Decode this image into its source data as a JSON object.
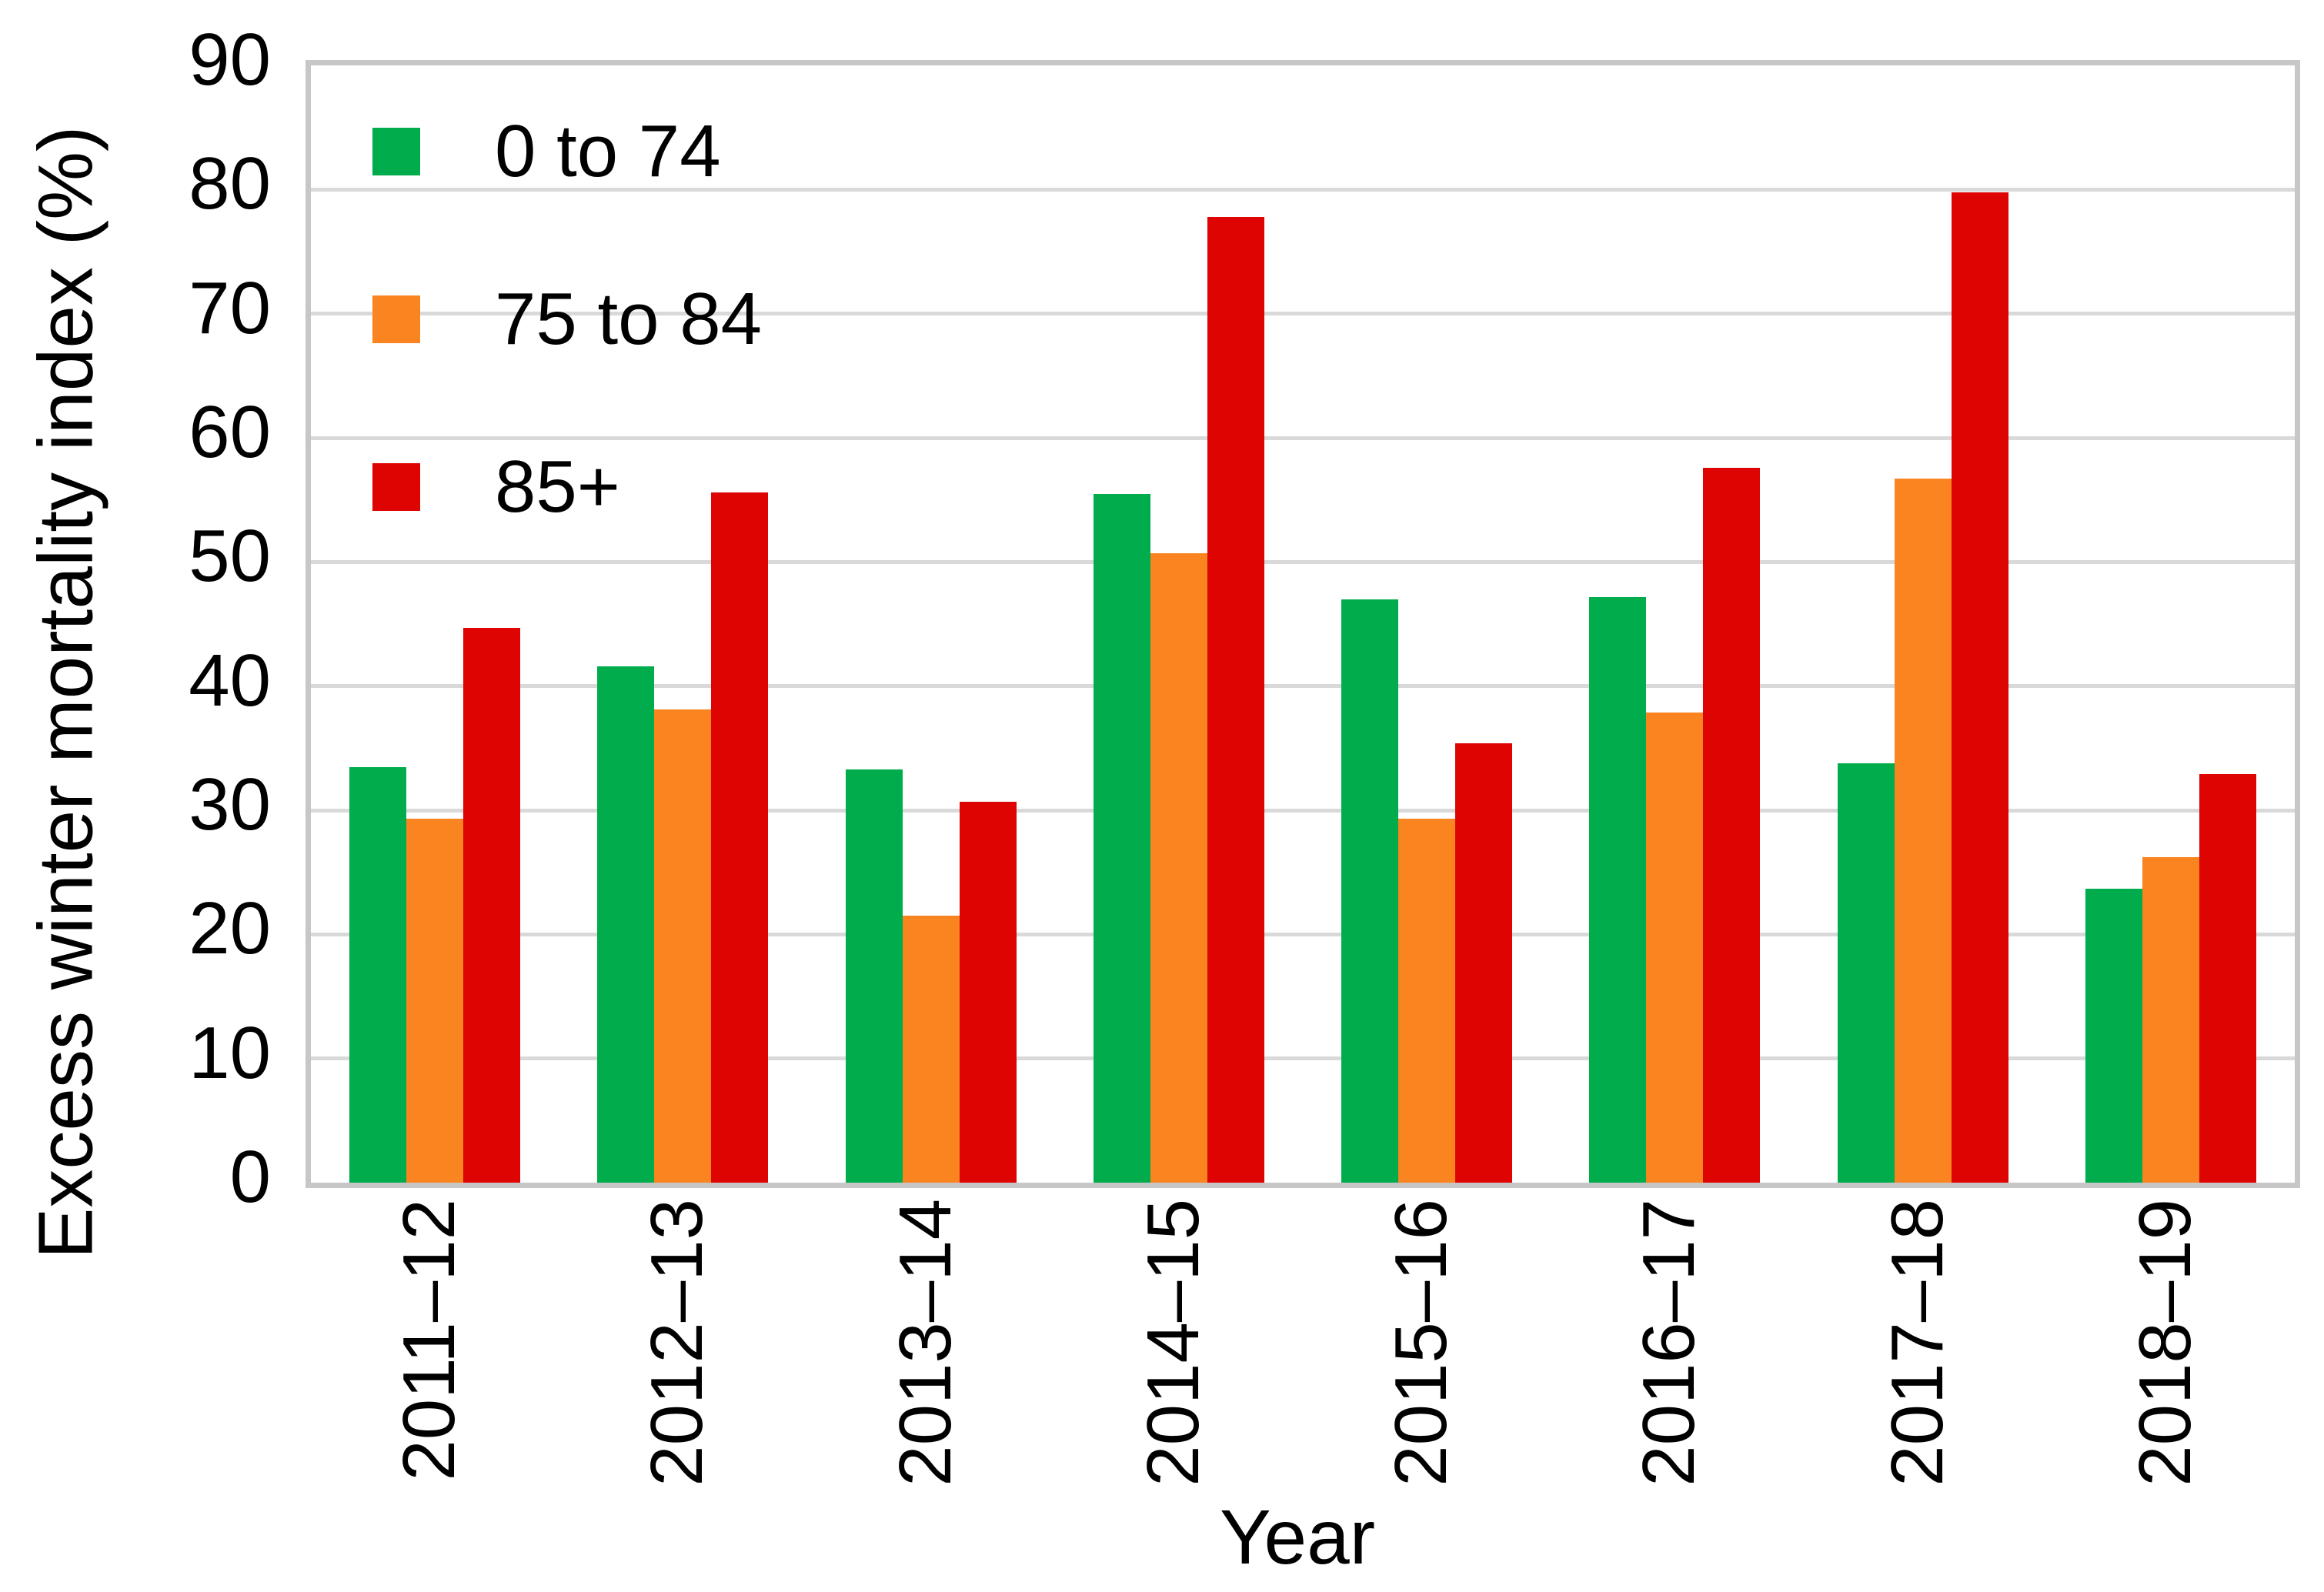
{
  "chart_data": {
    "type": "bar",
    "title": "",
    "xlabel": "Year",
    "ylabel": "Excess winter mortality index (%)",
    "ylim": [
      0,
      90
    ],
    "yticks": [
      0,
      10,
      20,
      30,
      40,
      50,
      60,
      70,
      80,
      90
    ],
    "grid": "horizontal",
    "legend_position": "inside-top-left",
    "categories": [
      "2011–12",
      "2012–13",
      "2013–14",
      "2014–15",
      "2015–16",
      "2016–17",
      "2017–18",
      "2018–19"
    ],
    "series": [
      {
        "name": "0 to 74",
        "color": "#00AC4B",
        "values": [
          33.5,
          41.6,
          33.3,
          55.5,
          47.0,
          47.2,
          33.8,
          23.7
        ]
      },
      {
        "name": "75 to 84",
        "color": "#F98420",
        "values": [
          29.3,
          38.1,
          21.5,
          50.7,
          29.3,
          37.9,
          56.7,
          26.2
        ]
      },
      {
        "name": "85+",
        "color": "#DE0402",
        "values": [
          44.7,
          55.6,
          30.7,
          77.8,
          35.4,
          57.6,
          79.8,
          32.9
        ]
      }
    ]
  },
  "colors": {
    "background": "#FFFFFF",
    "plot_border": "#C7C7C7",
    "gridline": "#D9D9D9",
    "text": "#000000"
  }
}
